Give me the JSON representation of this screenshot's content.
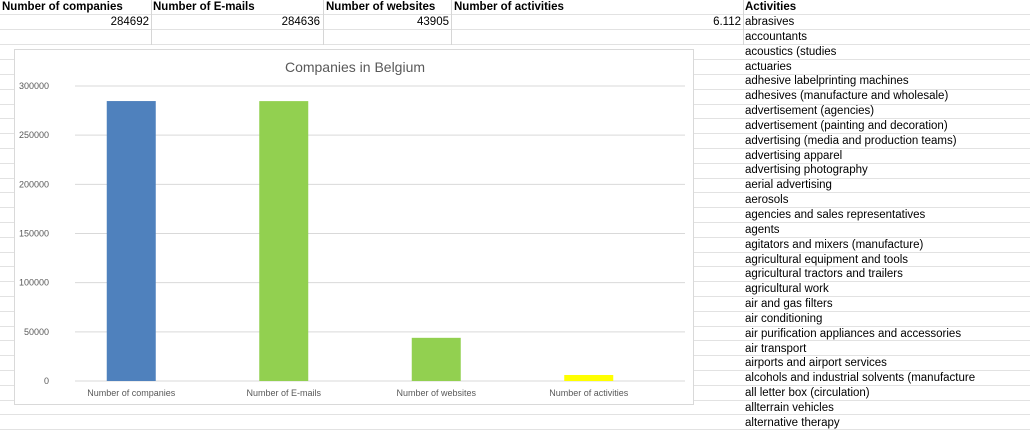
{
  "sheet": {
    "headers": [
      "Number of companies",
      "Number of E-mails",
      "Number of websites",
      "Number of activities",
      "Activities"
    ],
    "values": [
      "284692",
      "284636",
      "43905",
      "6.112"
    ],
    "activities": [
      "abrasives",
      "accountants",
      "acoustics (studies",
      "actuaries",
      "adhesive labelprinting machines",
      "adhesives (manufacture and wholesale)",
      "advertisement (agencies)",
      "advertisement (painting and decoration)",
      "advertising (media and production teams)",
      "advertising apparel",
      "advertising photography",
      "aerial advertising",
      "aerosols",
      "agencies and sales representatives",
      "agents",
      "agitators and mixers (manufacture)",
      "agricultural equipment and tools",
      "agricultural tractors and trailers",
      "agricultural work",
      "air and gas filters",
      "air conditioning",
      "air purification  appliances and accessories",
      "air transport",
      "airports and airport services",
      "alcohols and industrial solvents (manufacture",
      "all letter box (circulation)",
      "allterrain vehicles",
      "alternative therapy"
    ]
  },
  "chart_data": {
    "type": "bar",
    "title": "Companies in Belgium",
    "categories": [
      "Number of companies",
      "Number of E-mails",
      "Number of websites",
      "Number of activities"
    ],
    "values": [
      284692,
      284636,
      43905,
      6112
    ],
    "colors": [
      "#4f81bd",
      "#92d050",
      "#92d050",
      "#ffff00"
    ],
    "ylim": [
      0,
      300000
    ],
    "yticks": [
      0,
      50000,
      100000,
      150000,
      200000,
      250000,
      300000
    ],
    "ytick_labels": [
      "0",
      "50000",
      "100000",
      "150000",
      "200000",
      "250000",
      "300000"
    ],
    "grid": true,
    "legend": "none"
  }
}
